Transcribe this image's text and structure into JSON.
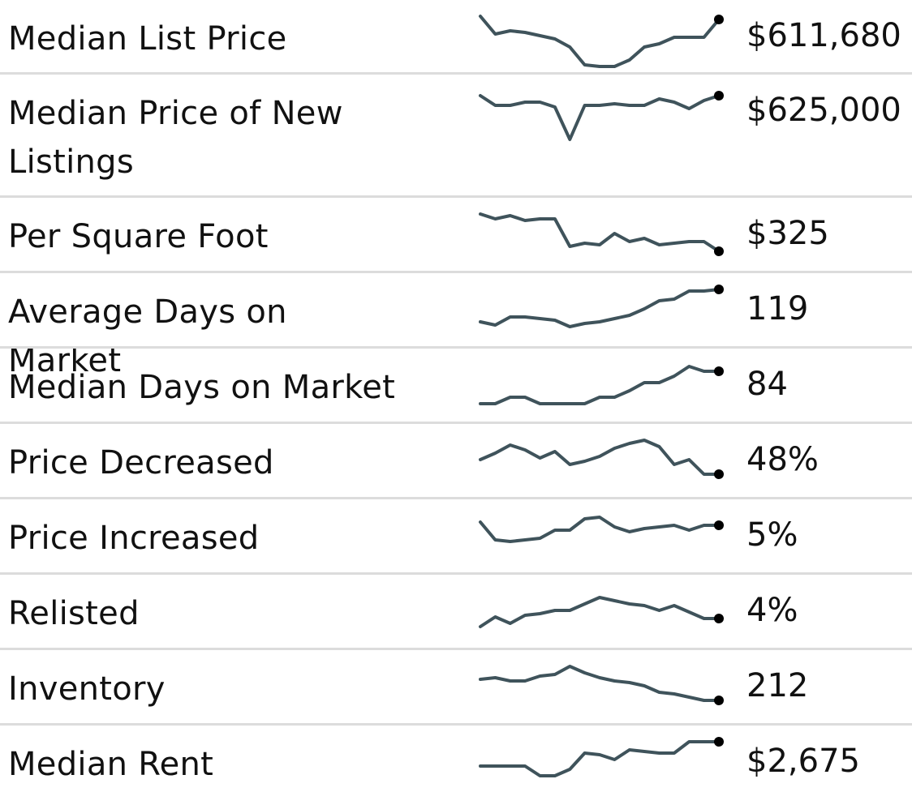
{
  "chart_data": {
    "type": "line",
    "rows": [
      {
        "label": "Median List Price",
        "value": "$611,680",
        "points": [
          0.0,
          0.55,
          0.45,
          0.5,
          0.6,
          0.7,
          0.95,
          1.5,
          1.55,
          1.55,
          1.35,
          0.95,
          0.85,
          0.65,
          0.65,
          0.65,
          0.1
        ]
      },
      {
        "label": "Median Price of New Listings",
        "value": "$625,000",
        "points": [
          0.15,
          0.45,
          0.45,
          0.35,
          0.35,
          0.5,
          1.5,
          0.45,
          0.45,
          0.4,
          0.45,
          0.45,
          0.25,
          0.35,
          0.55,
          0.3,
          0.15
        ]
      },
      {
        "label": "Per Square Foot",
        "value": "$325",
        "points": [
          0.0,
          0.15,
          0.05,
          0.2,
          0.15,
          0.15,
          1.0,
          0.9,
          0.95,
          0.6,
          0.85,
          0.75,
          0.95,
          0.9,
          0.85,
          0.85,
          1.15
        ]
      },
      {
        "label": "Average Days on Market",
        "value": "119",
        "points": [
          1.0,
          1.1,
          0.85,
          0.85,
          0.9,
          0.95,
          1.15,
          1.05,
          1.0,
          0.9,
          0.8,
          0.6,
          0.35,
          0.3,
          0.05,
          0.05,
          0.0
        ]
      },
      {
        "label": "Median Days on Market",
        "value": "84",
        "points": [
          1.2,
          1.2,
          1.0,
          1.0,
          1.2,
          1.2,
          1.2,
          1.2,
          1.0,
          1.0,
          0.8,
          0.55,
          0.55,
          0.35,
          0.05,
          0.2,
          0.2
        ]
      },
      {
        "label": "Price Decreased",
        "value": "48%",
        "points": [
          0.6,
          0.4,
          0.15,
          0.3,
          0.55,
          0.35,
          0.75,
          0.65,
          0.5,
          0.25,
          0.1,
          0.0,
          0.2,
          0.75,
          0.6,
          1.05,
          1.05
        ]
      },
      {
        "label": "Price Increased",
        "value": "5%",
        "points": [
          0.2,
          0.75,
          0.8,
          0.75,
          0.7,
          0.45,
          0.45,
          0.1,
          0.05,
          0.35,
          0.5,
          0.4,
          0.35,
          0.3,
          0.45,
          0.3,
          0.3
        ]
      },
      {
        "label": "Relisted",
        "value": "4%",
        "points": [
          1.1,
          0.8,
          1.0,
          0.75,
          0.7,
          0.6,
          0.6,
          0.4,
          0.2,
          0.3,
          0.4,
          0.45,
          0.6,
          0.45,
          0.65,
          0.85,
          0.85
        ]
      },
      {
        "label": "Inventory",
        "value": "212",
        "points": [
          0.4,
          0.35,
          0.45,
          0.45,
          0.3,
          0.25,
          0.0,
          0.2,
          0.35,
          0.45,
          0.5,
          0.6,
          0.8,
          0.85,
          0.95,
          1.05,
          1.05
        ]
      },
      {
        "label": "Median Rent",
        "value": "$2,675",
        "points": [
          0.75,
          0.75,
          0.75,
          0.75,
          1.05,
          1.05,
          0.85,
          0.35,
          0.4,
          0.55,
          0.25,
          0.3,
          0.35,
          0.35,
          0.0,
          0.0,
          0.0
        ]
      }
    ]
  }
}
